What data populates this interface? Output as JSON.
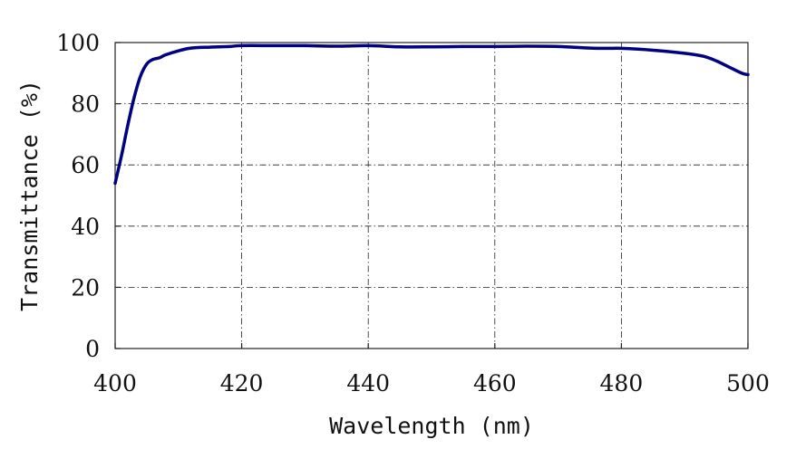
{
  "chart_data": {
    "type": "line",
    "title": "",
    "xlabel": "Wavelength (nm)",
    "ylabel": "Transmittance (%)",
    "xlim": [
      400,
      500
    ],
    "ylim": [
      0,
      100
    ],
    "x_ticks": [
      400,
      420,
      440,
      460,
      480,
      500
    ],
    "y_ticks": [
      0,
      20,
      40,
      60,
      80,
      100
    ],
    "x_tick_labels": [
      "400",
      "420",
      "440",
      "460",
      "480",
      "500"
    ],
    "y_tick_labels": [
      "0",
      "20",
      "40",
      "60",
      "80",
      "100"
    ],
    "grid": true,
    "line_color": "#000080",
    "series": [
      {
        "x": [
          400,
          401,
          402,
          403,
          404,
          405,
          406,
          407,
          408,
          410,
          412,
          415,
          418,
          420,
          425,
          430,
          435,
          440,
          445,
          450,
          455,
          460,
          465,
          470,
          475,
          478,
          480,
          485,
          490,
          493,
          495,
          497,
          499,
          500
        ],
        "y": [
          54,
          63,
          73,
          82,
          89,
          93,
          94.5,
          95,
          96,
          97.3,
          98.2,
          98.5,
          98.7,
          99,
          99,
          99,
          98.8,
          99,
          98.6,
          98.6,
          98.7,
          98.7,
          98.8,
          98.7,
          98.2,
          98.1,
          98.1,
          97.5,
          96.5,
          95.5,
          94,
          92,
          90,
          89.5
        ]
      }
    ]
  }
}
